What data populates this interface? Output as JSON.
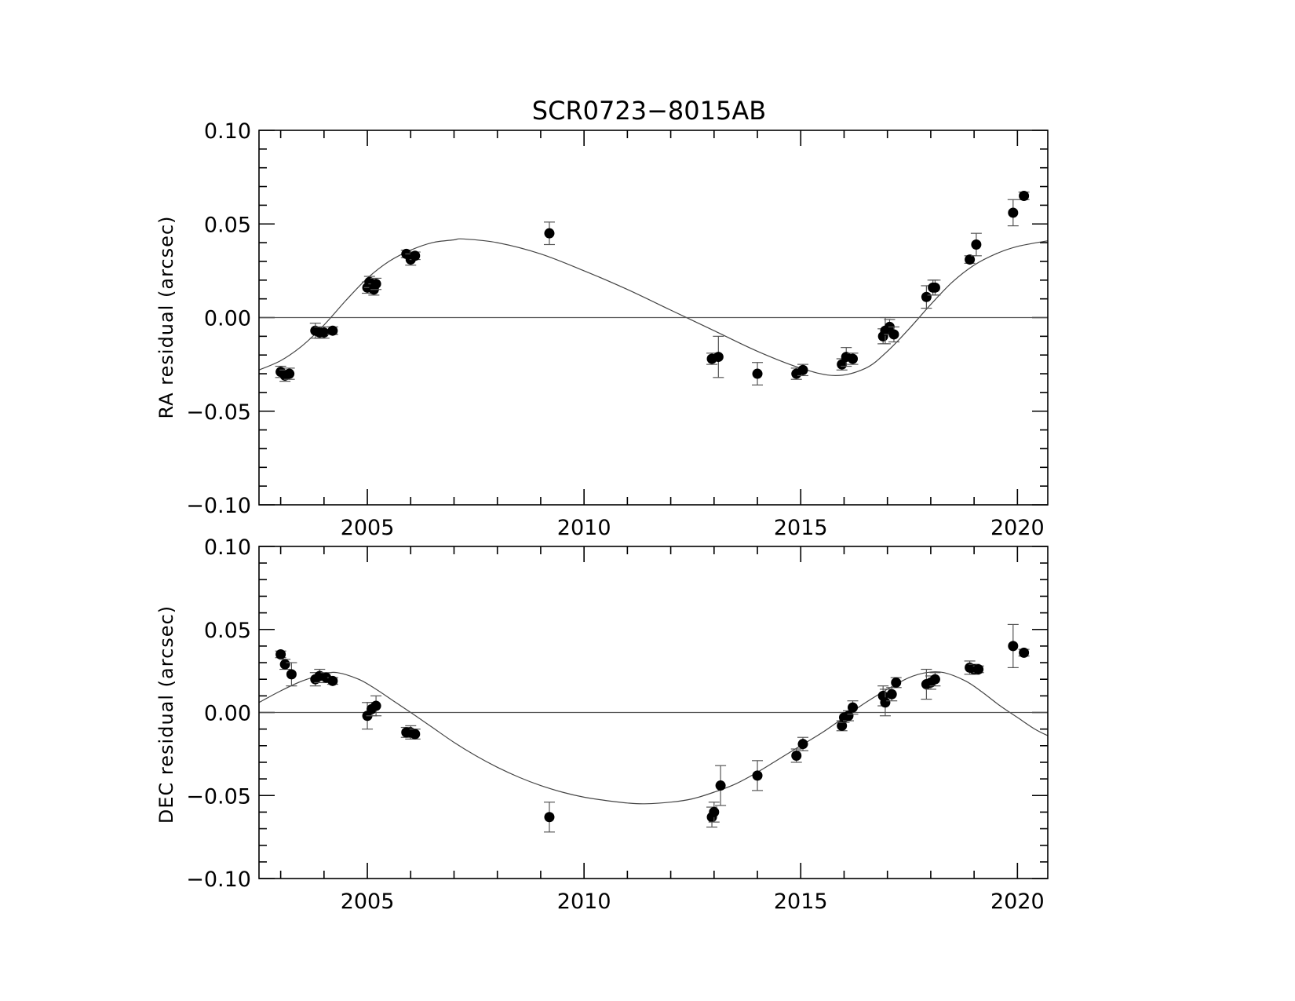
{
  "chart_data": {
    "type": "scatter",
    "title": "SCR0723−8015AB",
    "x_range": [
      2002.5,
      2020.7
    ],
    "x_ticks": [
      2005,
      2010,
      2015,
      2020
    ],
    "x_tick_labels": [
      "2005",
      "2010",
      "2015",
      "2020"
    ],
    "panels": [
      {
        "ylabel": "RA residual (arcsec)",
        "ylim": [
          -0.1,
          0.1
        ],
        "y_ticks": [
          -0.1,
          -0.05,
          0.0,
          0.05,
          0.1
        ],
        "y_tick_labels": [
          "−0.10",
          "−0.05",
          "0.00",
          "0.05",
          "0.10"
        ],
        "series": [
          {
            "kind": "points_with_error_bars",
            "points": [
              {
                "x": 2003.0,
                "y": -0.029,
                "err": 0.003
              },
              {
                "x": 2003.1,
                "y": -0.031,
                "err": 0.003
              },
              {
                "x": 2003.2,
                "y": -0.03,
                "err": 0.003
              },
              {
                "x": 2003.8,
                "y": -0.007,
                "err": 0.004
              },
              {
                "x": 2003.9,
                "y": -0.008,
                "err": 0.003
              },
              {
                "x": 2004.0,
                "y": -0.008,
                "err": 0.003
              },
              {
                "x": 2004.2,
                "y": -0.007,
                "err": 0.002
              },
              {
                "x": 2005.0,
                "y": 0.016,
                "err": 0.003
              },
              {
                "x": 2005.05,
                "y": 0.019,
                "err": 0.003
              },
              {
                "x": 2005.15,
                "y": 0.015,
                "err": 0.003
              },
              {
                "x": 2005.2,
                "y": 0.018,
                "err": 0.003
              },
              {
                "x": 2005.9,
                "y": 0.034,
                "err": 0.002
              },
              {
                "x": 2006.0,
                "y": 0.031,
                "err": 0.003
              },
              {
                "x": 2006.1,
                "y": 0.033,
                "err": 0.002
              },
              {
                "x": 2009.2,
                "y": 0.045,
                "err": 0.006
              },
              {
                "x": 2012.95,
                "y": -0.022,
                "err": 0.003
              },
              {
                "x": 2013.1,
                "y": -0.021,
                "err": 0.011
              },
              {
                "x": 2014.0,
                "y": -0.03,
                "err": 0.006
              },
              {
                "x": 2014.9,
                "y": -0.03,
                "err": 0.003
              },
              {
                "x": 2015.05,
                "y": -0.028,
                "err": 0.003
              },
              {
                "x": 2015.95,
                "y": -0.025,
                "err": 0.003
              },
              {
                "x": 2016.05,
                "y": -0.021,
                "err": 0.005
              },
              {
                "x": 2016.2,
                "y": -0.022,
                "err": 0.003
              },
              {
                "x": 2016.9,
                "y": -0.01,
                "err": 0.004
              },
              {
                "x": 2016.95,
                "y": -0.007,
                "err": 0.007
              },
              {
                "x": 2017.05,
                "y": -0.005,
                "err": 0.004
              },
              {
                "x": 2017.15,
                "y": -0.009,
                "err": 0.004
              },
              {
                "x": 2017.9,
                "y": 0.011,
                "err": 0.006
              },
              {
                "x": 2018.05,
                "y": 0.016,
                "err": 0.004
              },
              {
                "x": 2018.1,
                "y": 0.016,
                "err": 0.004
              },
              {
                "x": 2018.9,
                "y": 0.031,
                "err": 0.002
              },
              {
                "x": 2019.05,
                "y": 0.039,
                "err": 0.006
              },
              {
                "x": 2019.9,
                "y": 0.056,
                "err": 0.007
              },
              {
                "x": 2020.15,
                "y": 0.065,
                "err": 0.002
              }
            ]
          },
          {
            "kind": "fit_curve",
            "points": [
              [
                2002.5,
                -0.028
              ],
              [
                2003.0,
                -0.023
              ],
              [
                2003.5,
                -0.015
              ],
              [
                2004.0,
                -0.004
              ],
              [
                2004.5,
                0.009
              ],
              [
                2005.0,
                0.021
              ],
              [
                2005.5,
                0.03
              ],
              [
                2006.0,
                0.036
              ],
              [
                2006.5,
                0.04
              ],
              [
                2007.0,
                0.0415
              ],
              [
                2007.2,
                0.042
              ],
              [
                2008.0,
                0.04
              ],
              [
                2009.0,
                0.034
              ],
              [
                2010.0,
                0.025
              ],
              [
                2011.0,
                0.015
              ],
              [
                2012.0,
                0.004
              ],
              [
                2013.0,
                -0.007
              ],
              [
                2014.0,
                -0.018
              ],
              [
                2015.0,
                -0.027
              ],
              [
                2015.8,
                -0.031
              ],
              [
                2016.5,
                -0.027
              ],
              [
                2017.0,
                -0.018
              ],
              [
                2017.5,
                -0.006
              ],
              [
                2018.0,
                0.007
              ],
              [
                2018.5,
                0.019
              ],
              [
                2019.0,
                0.028
              ],
              [
                2019.5,
                0.034
              ],
              [
                2020.0,
                0.038
              ],
              [
                2020.7,
                0.041
              ]
            ]
          },
          {
            "kind": "zero_line",
            "y": 0.0
          }
        ]
      },
      {
        "ylabel": "DEC residual (arcsec)",
        "ylim": [
          -0.1,
          0.1
        ],
        "y_ticks": [
          -0.1,
          -0.05,
          0.0,
          0.05,
          0.1
        ],
        "y_tick_labels": [
          "−0.10",
          "−0.05",
          "0.00",
          "0.05",
          "0.10"
        ],
        "series": [
          {
            "kind": "points_with_error_bars",
            "points": [
              {
                "x": 2003.0,
                "y": 0.035,
                "err": 0.002
              },
              {
                "x": 2003.1,
                "y": 0.029,
                "err": 0.003
              },
              {
                "x": 2003.25,
                "y": 0.023,
                "err": 0.007
              },
              {
                "x": 2003.8,
                "y": 0.02,
                "err": 0.004
              },
              {
                "x": 2003.9,
                "y": 0.022,
                "err": 0.004
              },
              {
                "x": 2004.05,
                "y": 0.021,
                "err": 0.003
              },
              {
                "x": 2004.2,
                "y": 0.019,
                "err": 0.002
              },
              {
                "x": 2005.0,
                "y": -0.002,
                "err": 0.008
              },
              {
                "x": 2005.1,
                "y": 0.002,
                "err": 0.004
              },
              {
                "x": 2005.2,
                "y": 0.004,
                "err": 0.006
              },
              {
                "x": 2005.9,
                "y": -0.012,
                "err": 0.003
              },
              {
                "x": 2006.0,
                "y": -0.012,
                "err": 0.004
              },
              {
                "x": 2006.1,
                "y": -0.013,
                "err": 0.003
              },
              {
                "x": 2009.2,
                "y": -0.063,
                "err": 0.009
              },
              {
                "x": 2012.95,
                "y": -0.063,
                "err": 0.006
              },
              {
                "x": 2013.0,
                "y": -0.06,
                "err": 0.006
              },
              {
                "x": 2013.15,
                "y": -0.044,
                "err": 0.012
              },
              {
                "x": 2014.0,
                "y": -0.038,
                "err": 0.009
              },
              {
                "x": 2014.9,
                "y": -0.026,
                "err": 0.004
              },
              {
                "x": 2015.05,
                "y": -0.019,
                "err": 0.004
              },
              {
                "x": 2015.95,
                "y": -0.008,
                "err": 0.003
              },
              {
                "x": 2016.0,
                "y": -0.003,
                "err": 0.003
              },
              {
                "x": 2016.1,
                "y": -0.002,
                "err": 0.003
              },
              {
                "x": 2016.2,
                "y": 0.003,
                "err": 0.004
              },
              {
                "x": 2016.9,
                "y": 0.01,
                "err": 0.006
              },
              {
                "x": 2016.95,
                "y": 0.006,
                "err": 0.008
              },
              {
                "x": 2017.1,
                "y": 0.011,
                "err": 0.004
              },
              {
                "x": 2017.2,
                "y": 0.018,
                "err": 0.003
              },
              {
                "x": 2017.9,
                "y": 0.017,
                "err": 0.009
              },
              {
                "x": 2018.0,
                "y": 0.018,
                "err": 0.004
              },
              {
                "x": 2018.1,
                "y": 0.02,
                "err": 0.004
              },
              {
                "x": 2018.9,
                "y": 0.027,
                "err": 0.004
              },
              {
                "x": 2019.0,
                "y": 0.026,
                "err": 0.003
              },
              {
                "x": 2019.1,
                "y": 0.026,
                "err": 0.002
              },
              {
                "x": 2019.9,
                "y": 0.04,
                "err": 0.013
              },
              {
                "x": 2020.15,
                "y": 0.036,
                "err": 0.002
              }
            ]
          },
          {
            "kind": "fit_curve",
            "points": [
              [
                2002.5,
                0.006
              ],
              [
                2003.0,
                0.013
              ],
              [
                2003.5,
                0.019
              ],
              [
                2004.0,
                0.023
              ],
              [
                2004.3,
                0.024
              ],
              [
                2004.8,
                0.02
              ],
              [
                2005.2,
                0.014
              ],
              [
                2005.6,
                0.007
              ],
              [
                2006.0,
                0.0
              ],
              [
                2006.5,
                -0.009
              ],
              [
                2007.0,
                -0.018
              ],
              [
                2007.5,
                -0.026
              ],
              [
                2008.0,
                -0.033
              ],
              [
                2008.5,
                -0.039
              ],
              [
                2009.0,
                -0.044
              ],
              [
                2009.5,
                -0.048
              ],
              [
                2010.0,
                -0.051
              ],
              [
                2010.5,
                -0.053
              ],
              [
                2011.0,
                -0.0545
              ],
              [
                2011.4,
                -0.055
              ],
              [
                2012.0,
                -0.054
              ],
              [
                2012.5,
                -0.052
              ],
              [
                2013.0,
                -0.048
              ],
              [
                2013.5,
                -0.043
              ],
              [
                2014.0,
                -0.036
              ],
              [
                2014.5,
                -0.028
              ],
              [
                2015.0,
                -0.02
              ],
              [
                2015.5,
                -0.012
              ],
              [
                2016.0,
                -0.003
              ],
              [
                2016.5,
                0.006
              ],
              [
                2017.0,
                0.014
              ],
              [
                2017.5,
                0.021
              ],
              [
                2017.9,
                0.024
              ],
              [
                2018.3,
                0.024
              ],
              [
                2018.8,
                0.019
              ],
              [
                2019.2,
                0.012
              ],
              [
                2019.6,
                0.004
              ],
              [
                2020.0,
                -0.003
              ],
              [
                2020.4,
                -0.01
              ],
              [
                2020.7,
                -0.014
              ]
            ]
          },
          {
            "kind": "zero_line",
            "y": 0.0
          }
        ]
      }
    ]
  }
}
